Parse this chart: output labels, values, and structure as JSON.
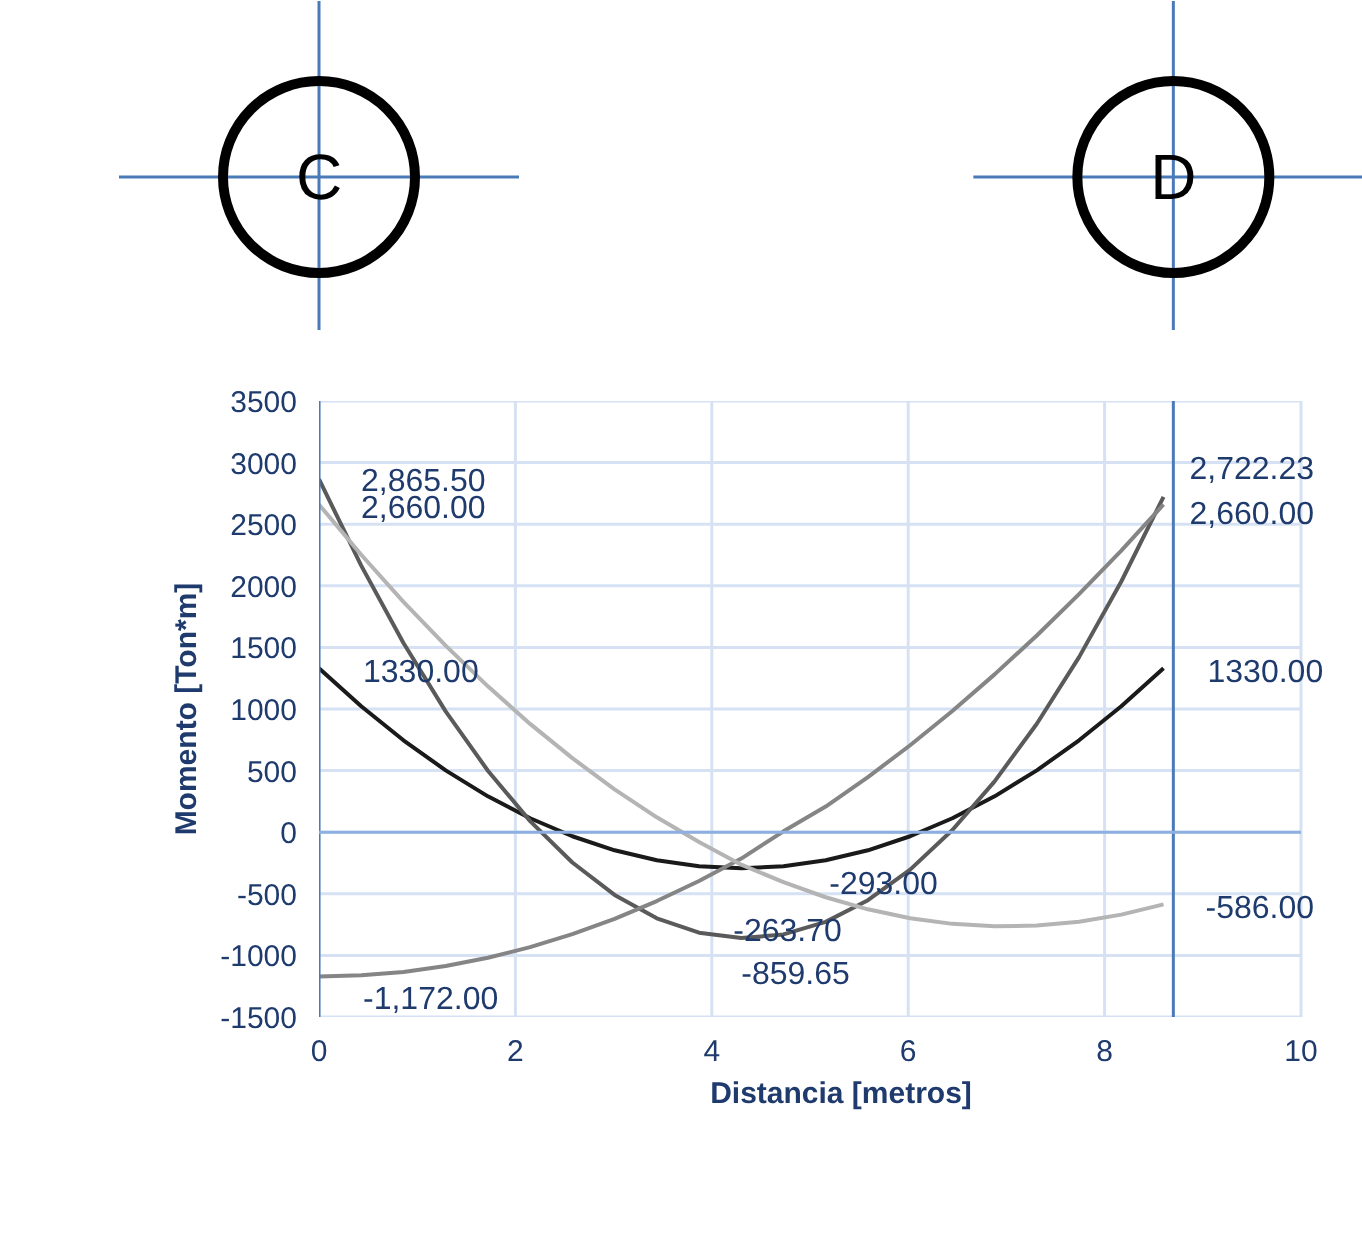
{
  "chart_data": {
    "type": "line",
    "xlabel": "Distancia [metros]",
    "ylabel": "Momento [Ton*m]",
    "xlim": [
      0,
      10
    ],
    "xticks": [
      0,
      2,
      4,
      6,
      8,
      10
    ],
    "ylim": [
      -1500,
      3500
    ],
    "yticks": [
      -1500,
      -1000,
      -500,
      0,
      500,
      1000,
      1500,
      2000,
      2500,
      3000,
      3500
    ],
    "grid": true,
    "marker": "none",
    "line_style": "solid",
    "x": [
      0,
      0.43,
      0.86,
      1.29,
      1.72,
      2.15,
      2.58,
      3.01,
      3.44,
      3.87,
      4.3,
      4.73,
      5.16,
      5.59,
      6.02,
      6.45,
      6.88,
      7.31,
      7.74,
      8.17,
      8.6
    ],
    "series": [
      {
        "color": "#1a1a1a",
        "values": [
          1330,
          1022,
          746,
          502,
          291,
          113,
          -33,
          -147,
          -228,
          -277,
          -293,
          -277,
          -228,
          -147,
          -33,
          113,
          291,
          502,
          746,
          1022,
          1330
        ]
      },
      {
        "color": "#5a5a5a",
        "values": [
          2865.5,
          2164,
          1536,
          981,
          499,
          90,
          -246,
          -509,
          -699,
          -816,
          -859.65,
          -830,
          -728,
          -552,
          -304,
          18,
          413,
          880,
          1421,
          2035,
          2722.23
        ]
      },
      {
        "color": "#858585",
        "values": [
          -1172,
          -1162,
          -1134,
          -1086,
          -1019,
          -933,
          -827,
          -703,
          -559,
          -396,
          -214,
          7,
          208,
          447,
          706,
          984,
          1281,
          1597,
          1932,
          2286,
          2660
        ]
      },
      {
        "color": "#b4b4b4",
        "values": [
          2660,
          2252,
          1870,
          1514,
          1184,
          879,
          601,
          348,
          121,
          -80,
          -263.7,
          -405,
          -528,
          -626,
          -698,
          -744,
          -764,
          -758,
          -727,
          -669,
          -586
        ]
      }
    ],
    "annotations": [
      {
        "text": "2,865.50",
        "x": 0,
        "y": 2865.5
      },
      {
        "text": "2,660.00",
        "x": 0,
        "y": 2660
      },
      {
        "text": "1330.00",
        "x": 0,
        "y": 1330
      },
      {
        "text": "-1,172.00",
        "x": 0,
        "y": -1172
      },
      {
        "text": "2,722.23",
        "x": 8.6,
        "y": 2722.23
      },
      {
        "text": "2,660.00",
        "x": 8.6,
        "y": 2660
      },
      {
        "text": "1330.00",
        "x": 8.6,
        "y": 1330
      },
      {
        "text": "-586.00",
        "x": 8.6,
        "y": -586
      },
      {
        "text": "-293.00",
        "x": 4.3,
        "y": -293
      },
      {
        "text": "-263.70",
        "x": 4.3,
        "y": -263.7
      },
      {
        "text": "-859.65",
        "x": 4.3,
        "y": -859.65
      }
    ],
    "ref_lines": [
      {
        "axis": "x",
        "value": 0,
        "label": "C",
        "color": "#4a7ab8"
      },
      {
        "axis": "x",
        "value": 8.7,
        "label": "D",
        "color": "#4a7ab8"
      },
      {
        "axis": "y",
        "value": 0,
        "color": "#8eb0e0"
      }
    ]
  }
}
